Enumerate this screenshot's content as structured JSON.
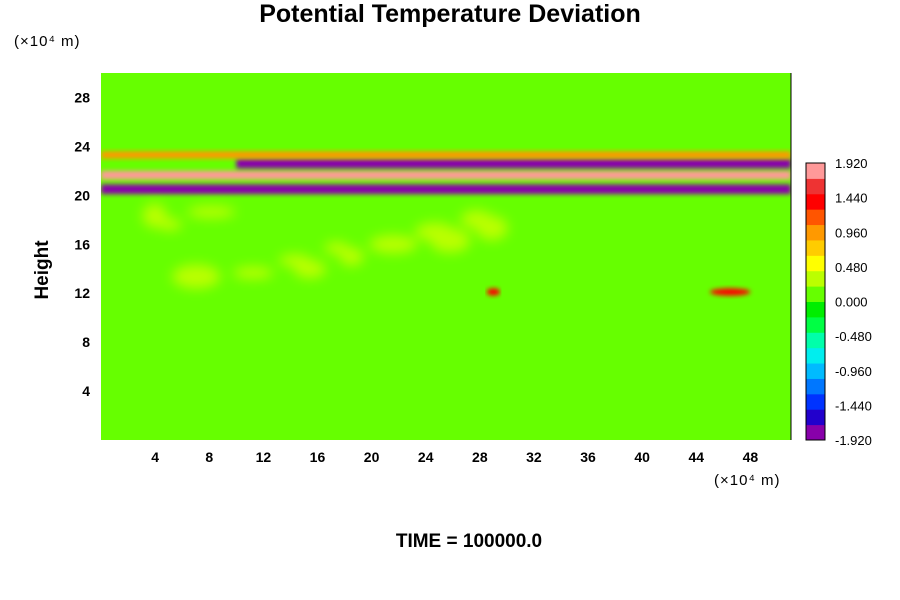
{
  "chart_data": {
    "type": "heatmap",
    "title": "Potential Temperature Deviation",
    "ylabel": "Height",
    "x_unit": "(×10⁴ m)",
    "y_unit": "(×10⁴ m)",
    "footer": "TIME = 100000.0",
    "xlim": [
      0,
      51
    ],
    "ylim": [
      0,
      30
    ],
    "x_ticks": [
      4,
      8,
      12,
      16,
      20,
      24,
      28,
      32,
      36,
      40,
      44,
      48
    ],
    "y_ticks": [
      4,
      8,
      12,
      16,
      20,
      24,
      28
    ],
    "background_value": 0.0,
    "colorbar": {
      "range": [
        -1.92,
        1.92
      ],
      "tick_labels": [
        "1.920",
        "1.440",
        "0.960",
        "0.480",
        "0.000",
        "-0.480",
        "-0.960",
        "-1.440",
        "-1.920"
      ],
      "colors": [
        "#8800aa",
        "#2200cc",
        "#0033ff",
        "#0077ff",
        "#00bbff",
        "#00eeee",
        "#00ffaa",
        "#00ff44",
        "#00ee00",
        "#66ff00",
        "#bbff00",
        "#ffff00",
        "#ffcc00",
        "#ff9900",
        "#ff5500",
        "#ff0000",
        "#ee3333",
        "#ff9999"
      ]
    },
    "features": [
      {
        "name": "warm band",
        "x": [
          0,
          51
        ],
        "y": [
          21.3,
          22.0
        ],
        "value": 1.92
      },
      {
        "name": "cold band upper",
        "x": [
          10,
          51
        ],
        "y": [
          22.2,
          23.0
        ],
        "value": -1.92
      },
      {
        "name": "cold band lower",
        "x": [
          0,
          51
        ],
        "y": [
          20.1,
          20.9
        ],
        "value": -1.92
      },
      {
        "name": "warm layer top",
        "x": [
          0,
          51
        ],
        "y": [
          23.0,
          23.6
        ],
        "value": 0.96
      },
      {
        "name": "warm spot",
        "x": [
          28.5,
          29.5
        ],
        "y": [
          11.8,
          12.4
        ],
        "value": 1.44
      },
      {
        "name": "warm spot",
        "x": [
          45,
          48
        ],
        "y": [
          11.8,
          12.4
        ],
        "value": 1.44
      },
      {
        "name": "weak warm eddies",
        "x": [
          2,
          30
        ],
        "y": [
          13,
          19
        ],
        "value": 0.48
      }
    ]
  }
}
